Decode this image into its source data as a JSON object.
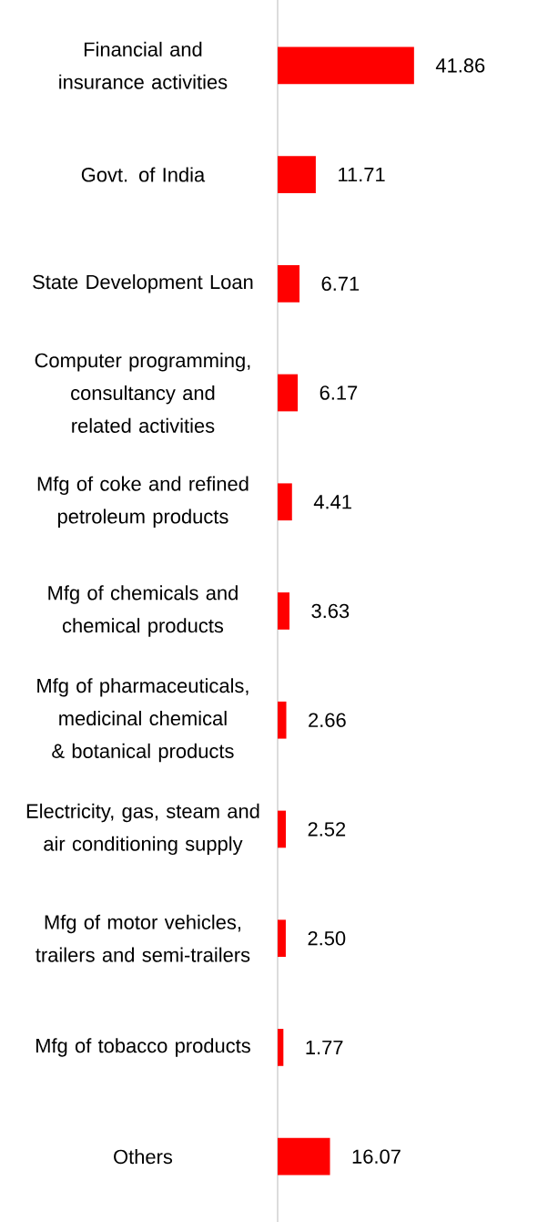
{
  "chart_data": {
    "type": "bar",
    "orientation": "horizontal",
    "categories": [
      "Financial and insurance activities",
      "Govt. of India",
      "State Development Loan",
      "Computer programming, consultancy and related activities",
      "Mfg of coke and refined petroleum products",
      "Mfg of chemicals and chemical products",
      "Mfg of pharmaceuticals, medicinal chemical & botanical products",
      "Electricity, gas, steam and air conditioning supply",
      "Mfg of motor vehicles, trailers and semi-trailers",
      "Mfg of tobacco products",
      "Others"
    ],
    "values": [
      41.86,
      11.71,
      6.71,
      6.17,
      4.41,
      3.63,
      2.66,
      2.52,
      2.5,
      1.77,
      16.07
    ],
    "value_labels": [
      "41.86",
      "11.71",
      "6.71",
      "6.17",
      "4.41",
      "3.63",
      "2.66",
      "2.52",
      "2.50",
      "1.77",
      "16.07"
    ],
    "color": "#ff0000"
  }
}
